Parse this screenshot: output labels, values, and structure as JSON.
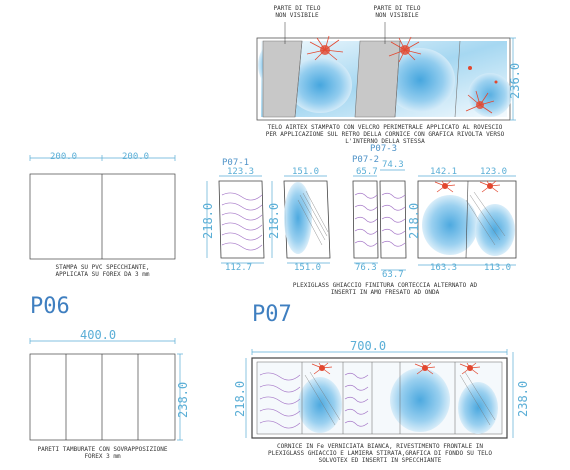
{
  "top": {
    "note_left": "PARTE DI TELO\nNON VISIBILE",
    "note_right": "PARTE DI TELO\nNON VISIBILE",
    "dim_height": "236.0",
    "caption": "TELO AIRTEX STAMPATO CON VELCRO PERIMETRALE APPLICATO AL ROVESCIO\nPER APPLICAZIONE SUL RETRO DELLA CORNICE CON GRAFICA RIVOLTA VERSO\nL'INTERNO DELLA STESSA"
  },
  "p06": {
    "title": "P06",
    "dim_left": "200.0",
    "dim_right": "200.0",
    "caption_top": "STAMPA SU PVC SPECCHIANTE,\nAPPLICATA SU FOREX DA 3 mm",
    "dim_total": "400.0",
    "dim_height": "238.0",
    "caption_bottom": "PARETI TAMBURATE CON SOVRAPPOSIZIONE\nFOREX 3 mm"
  },
  "p07": {
    "title": "P07",
    "label_1": "P07-1",
    "label_2": "P07-2",
    "label_3": "P07-3",
    "dim_123": "123.3",
    "dim_151_top": "151.0",
    "dim_65": "65.7",
    "dim_74": "74.3",
    "dim_142": "142.1",
    "dim_123b": "123.0",
    "dim_218a": "218.0",
    "dim_218b": "218.0",
    "dim_218c": "218.0",
    "dim_112": "112.7",
    "dim_151_bot": "151.0",
    "dim_76": "76.3",
    "dim_63": "63.7",
    "dim_163": "163.3",
    "dim_113": "113.0",
    "caption_mid": "PLEXIGLASS GHIACCIO FINITURA CORTECCIA ALTERNATO AD\nINSERTI IN AMO FRESATO AD ONDA",
    "dim_total": "700.0",
    "dim_height_left": "218.0",
    "dim_height_right": "238.0",
    "caption_bottom": "CORNICE IN Fe VERNICIATA BIANCA, RIVESTIMENTO FRONTALE IN\nPLEXIGLASS GHIACCIO E LAMIERA STIRATA,GRAFICA DI FONDO SU TELO\nSOLVOTEX ED INSERTI IN SPECCHIANTE"
  }
}
